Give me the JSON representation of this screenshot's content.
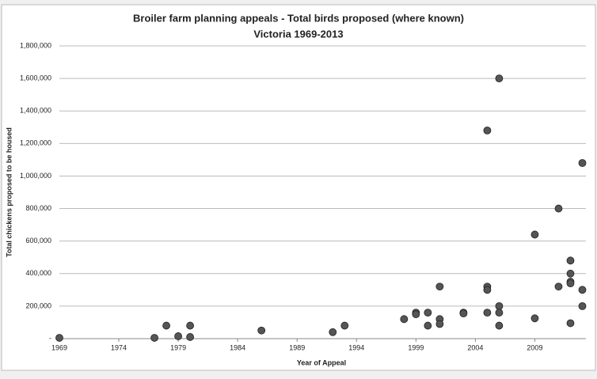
{
  "chart_data": {
    "type": "scatter",
    "title": "Broiler farm planning appeals - Total birds proposed (where known)",
    "subtitle": "Victoria 1969-2013",
    "xlabel": "Year of Appeal",
    "ylabel": "Total chickens proposed to be housed",
    "color": "#555555",
    "grid": true,
    "xlim": [
      1969,
      2013.3
    ],
    "ylim": [
      0,
      1800000
    ],
    "xticks": [
      1969,
      1974,
      1979,
      1984,
      1989,
      1994,
      1999,
      2004,
      2009
    ],
    "yticks": [
      {
        "value": 0,
        "label": "-"
      },
      {
        "value": 200000,
        "label": "200,000"
      },
      {
        "value": 400000,
        "label": "400,000"
      },
      {
        "value": 600000,
        "label": "600,000"
      },
      {
        "value": 800000,
        "label": "800,000"
      },
      {
        "value": 1000000,
        "label": "1,000,000"
      },
      {
        "value": 1200000,
        "label": "1,200,000"
      },
      {
        "value": 1400000,
        "label": "1,400,000"
      },
      {
        "value": 1600000,
        "label": "1,600,000"
      },
      {
        "value": 1800000,
        "label": "1,800,000"
      }
    ],
    "x": [
      1969,
      1977,
      1978,
      1979,
      1980,
      1980,
      1986,
      1992,
      1993,
      1998,
      1999,
      1999,
      2000,
      2000,
      2001,
      2001,
      2001,
      2003,
      2003,
      2005,
      2005,
      2005,
      2005,
      2006,
      2006,
      2006,
      2006,
      2009,
      2009,
      2011,
      2011,
      2012,
      2012,
      2012,
      2012,
      2012,
      2013,
      2013,
      2013
    ],
    "values": [
      5000,
      5000,
      80000,
      15000,
      80000,
      10000,
      50000,
      40000,
      80000,
      120000,
      160000,
      150000,
      160000,
      80000,
      120000,
      90000,
      320000,
      160000,
      155000,
      320000,
      300000,
      160000,
      1280000,
      1600000,
      200000,
      160000,
      80000,
      640000,
      125000,
      800000,
      320000,
      480000,
      400000,
      350000,
      340000,
      95000,
      1080000,
      300000,
      200000
    ]
  }
}
